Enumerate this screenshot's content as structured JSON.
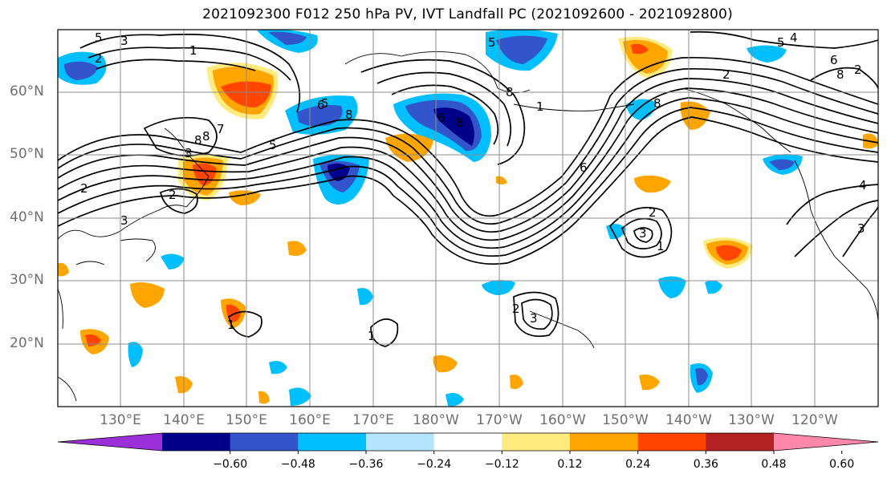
{
  "title": "2021092300 F012 250 hPa PV, IVT Landfall PC (2021092600 - 2021092800)",
  "lat_labels": [
    "60°N",
    "50°N",
    "40°N",
    "30°N",
    "20°N"
  ],
  "lon_labels": [
    "130°E",
    "140°E",
    "150°E",
    "160°E",
    "170°E",
    "180°W",
    "170°W",
    "160°W",
    "150°W",
    "140°W",
    "130°W",
    "120°W"
  ],
  "colorbar": {
    "ticks": [
      "−0.60",
      "−0.48",
      "−0.36",
      "−0.24",
      "−0.12",
      "0.12",
      "0.24",
      "0.36",
      "0.48",
      "0.60"
    ],
    "colors": [
      "#9b30d8",
      "#000088",
      "#3355cc",
      "#00bfff",
      "#b3e5ff",
      "#ffffff",
      "#ffeb80",
      "#ffa500",
      "#ff4500",
      "#b22222",
      "#ff88aa"
    ]
  },
  "contour_labels": [
    "5",
    "3",
    "2",
    "1",
    "5",
    "7",
    "8",
    "6",
    "2",
    "8",
    "5",
    "5",
    "6",
    "8",
    "8",
    "3",
    "2",
    "3",
    "8",
    "6",
    "1",
    "2",
    "3",
    "1",
    "1",
    "2",
    "3",
    "1",
    "5",
    "4",
    "6",
    "8",
    "2",
    "8",
    "2",
    "4",
    "3"
  ],
  "colors": {
    "neg_strong": "#000088",
    "neg_mid": "#3355cc",
    "neg_weak": "#00bfff",
    "neg_faint": "#b3e5ff",
    "pos_faint": "#ffeb80",
    "pos_weak": "#ffa500",
    "pos_mid": "#ff4500",
    "pos_strong": "#b22222",
    "pos_extreme": "#ff88aa",
    "contour": "#000000",
    "grid": "#8c8c8c",
    "axis_label": "#6f6f6f"
  }
}
